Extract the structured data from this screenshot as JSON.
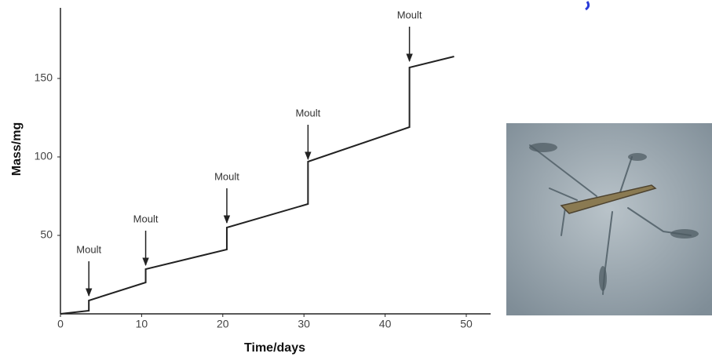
{
  "chart_data": {
    "type": "line",
    "x_label": "Time/days",
    "y_label": "Mass/mg",
    "x": [
      0,
      3.5,
      3.5,
      10.5,
      10.5,
      20.5,
      20.5,
      30.5,
      30.5,
      43,
      43,
      48.5
    ],
    "values": [
      0,
      2,
      8.5,
      20,
      28.5,
      41,
      55,
      70,
      97,
      119,
      157,
      164
    ],
    "color": "#222222",
    "xlim": [
      0,
      53
    ],
    "ylim": [
      0,
      195
    ],
    "xticks": [
      0,
      10,
      20,
      30,
      40,
      50
    ],
    "yticks": [
      50,
      100,
      150
    ],
    "annotations": [
      {
        "text": "Moult",
        "x": 3.5,
        "y": 11.5
      },
      {
        "text": "Moult",
        "x": 10.5,
        "y": 31
      },
      {
        "text": "Moult",
        "x": 20.5,
        "y": 58
      },
      {
        "text": "Moult",
        "x": 30.5,
        "y": 98.5
      },
      {
        "text": "Moult",
        "x": 43,
        "y": 161
      }
    ]
  }
}
